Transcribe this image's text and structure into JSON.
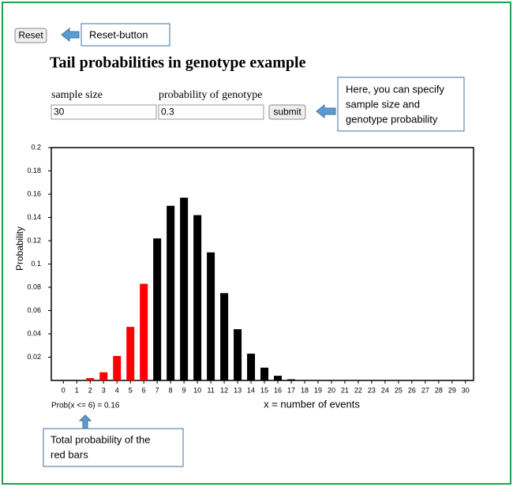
{
  "reset_button": "Reset",
  "reset_callout": "Reset-button",
  "title": "Tail probabilities in genotype example",
  "form": {
    "sample_size_label": "sample size",
    "sample_size_value": "30",
    "probability_label": "probability of genotype",
    "probability_value": "0.3",
    "submit_button": "submit"
  },
  "form_callout": [
    "Here, you can specify",
    "sample size and",
    "genotype probability"
  ],
  "sum_callout": [
    "Total probability of the",
    "red bars"
  ],
  "chart_data": {
    "type": "bar",
    "y_label": "Probability",
    "x_label": "x = number of events",
    "annotation": "Prob(x <= 6) = 0.16",
    "x": [
      0,
      1,
      2,
      3,
      4,
      5,
      6,
      7,
      8,
      9,
      10,
      11,
      12,
      13,
      14,
      15,
      16,
      17,
      18,
      19,
      20,
      21,
      22,
      23,
      24,
      25,
      26,
      27,
      28,
      29,
      30
    ],
    "values": [
      0,
      0,
      0.002,
      0.007,
      0.021,
      0.046,
      0.083,
      0.122,
      0.15,
      0.157,
      0.142,
      0.11,
      0.075,
      0.044,
      0.023,
      0.011,
      0.004,
      0.001,
      0,
      0,
      0,
      0,
      0,
      0,
      0,
      0,
      0,
      0,
      0,
      0,
      0
    ],
    "colors": [
      "red",
      "red",
      "red",
      "red",
      "red",
      "red",
      "red",
      "black",
      "black",
      "black",
      "black",
      "black",
      "black",
      "black",
      "black",
      "black",
      "black",
      "black",
      "black",
      "black",
      "black",
      "black",
      "black",
      "black",
      "black",
      "black",
      "black",
      "black",
      "black",
      "black",
      "black"
    ],
    "xlim": [
      -0.9,
      30.6
    ],
    "xticks": [
      0,
      1,
      2,
      3,
      4,
      5,
      6,
      7,
      8,
      9,
      10,
      11,
      12,
      13,
      14,
      15,
      16,
      17,
      18,
      19,
      20,
      21,
      22,
      23,
      24,
      25,
      26,
      27,
      28,
      29,
      30
    ],
    "ylim": [
      0,
      0.2
    ],
    "yticks": [
      0.02,
      0.04,
      0.06,
      0.08,
      0.1,
      0.12,
      0.14,
      0.16,
      0.18,
      0.2
    ]
  }
}
